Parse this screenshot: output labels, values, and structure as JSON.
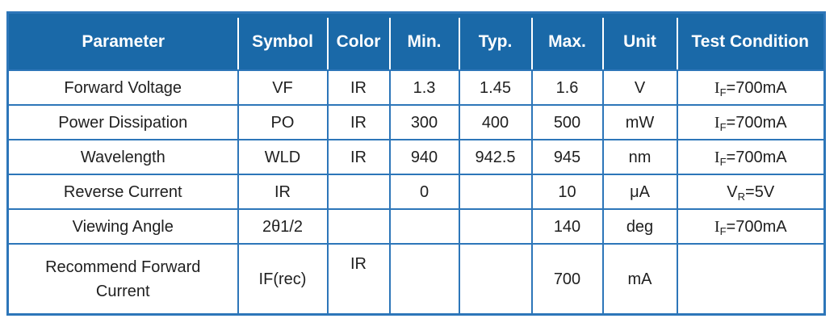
{
  "colors": {
    "header_bg": "#1a69a8",
    "grid_line": "#2d76b9",
    "header_text": "#ffffff",
    "body_text": "#1f1f1f",
    "page_bg": "#ffffff"
  },
  "table": {
    "headers": [
      "Parameter",
      "Symbol",
      "Color",
      "Min.",
      "Typ.",
      "Max.",
      "Unit",
      "Test Condition"
    ],
    "rows": [
      {
        "cells": [
          "Forward Voltage",
          "VF",
          "IR",
          "1.3",
          "1.45",
          "1.6",
          "V",
          {
            "parts": [
              {
                "t": "I",
                "f": "serif"
              },
              {
                "t": "F",
                "s": true
              },
              {
                "t": "=700mA"
              }
            ]
          }
        ]
      },
      {
        "cells": [
          "Power Dissipation",
          "PO",
          "IR",
          "300",
          "400",
          "500",
          "mW",
          {
            "parts": [
              {
                "t": "I",
                "f": "serif"
              },
              {
                "t": "F",
                "s": true
              },
              {
                "t": "=700mA"
              }
            ]
          }
        ]
      },
      {
        "cells": [
          "Wavelength",
          "WLD",
          "IR",
          "940",
          "942.5",
          "945",
          "nm",
          {
            "parts": [
              {
                "t": "I",
                "f": "serif"
              },
              {
                "t": "F",
                "s": true
              },
              {
                "t": "=700mA"
              }
            ]
          }
        ]
      },
      {
        "cells": [
          "Reverse Current",
          "IR",
          "",
          "0",
          "",
          "10",
          "μA",
          {
            "parts": [
              {
                "t": "V"
              },
              {
                "t": "R",
                "s": true
              },
              {
                "t": "=5V"
              }
            ]
          }
        ]
      },
      {
        "cells": [
          "Viewing Angle",
          "2θ1/2",
          "",
          "",
          "",
          "140",
          "deg",
          {
            "parts": [
              {
                "t": "I",
                "f": "serif"
              },
              {
                "t": "F",
                "s": true
              },
              {
                "t": "=700mA"
              }
            ]
          }
        ]
      },
      {
        "tall": true,
        "cells": [
          "Recommend Forward Current",
          "IF(rec)",
          {
            "parts": [
              {
                "t": "IR"
              }
            ],
            "valign": "top"
          },
          "",
          "",
          "700",
          "mA",
          ""
        ]
      }
    ]
  }
}
